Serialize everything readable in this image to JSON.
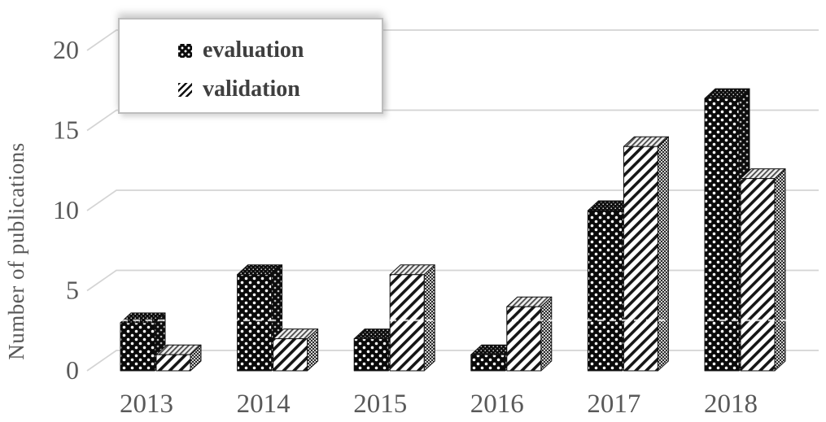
{
  "figure": {
    "description": "3D clustered column chart on white background",
    "background": "#ffffff"
  },
  "chart_data": {
    "type": "bar",
    "subtype": "3d-clustered-column",
    "title": "",
    "xlabel": "",
    "ylabel": "Number of publications",
    "categories": [
      "2013",
      "2014",
      "2015",
      "2016",
      "2017",
      "2018"
    ],
    "series": [
      {
        "name": "evaluation",
        "values": [
          3,
          6,
          2,
          1,
          10,
          17
        ],
        "fill": "black-with-white-dots"
      },
      {
        "name": "validation",
        "values": [
          1,
          2,
          6,
          4,
          14,
          12
        ],
        "fill": "white-with-black-diagonal-stripes"
      }
    ],
    "ylim": [
      0,
      20
    ],
    "yticks": [
      0,
      5,
      10,
      15,
      20
    ],
    "grid": true,
    "legend_position": "top-left",
    "annotations": [
      {
        "type": "faint-dashed-line",
        "value": 3.15
      }
    ]
  },
  "colors": {
    "grid": "#d4d4d4",
    "axis_text": "#595959",
    "legend_text": "#3f3f3f",
    "legend_border": "#bdbdbd",
    "bar_dark": "#0d0d0d",
    "bar_light": "#ffffff",
    "annotation_dash": "#ffffff"
  }
}
